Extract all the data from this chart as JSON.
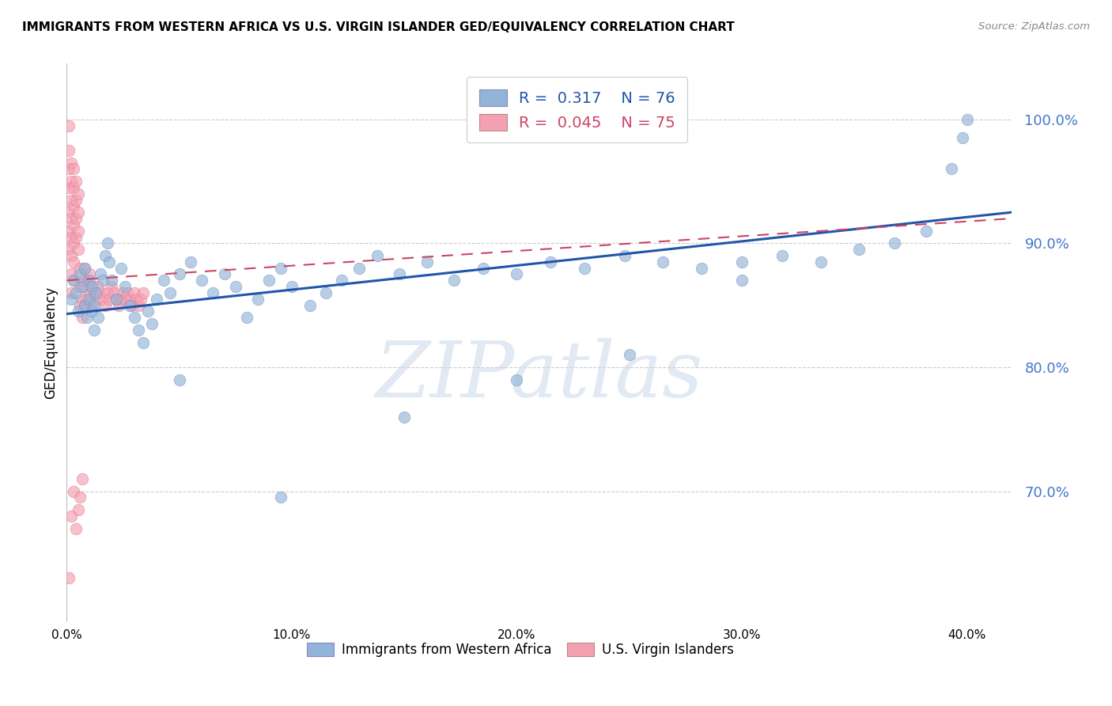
{
  "title": "IMMIGRANTS FROM WESTERN AFRICA VS U.S. VIRGIN ISLANDER GED/EQUIVALENCY CORRELATION CHART",
  "source": "Source: ZipAtlas.com",
  "ylabel": "GED/Equivalency",
  "xlim": [
    0.0,
    0.42
  ],
  "ylim": [
    0.595,
    1.045
  ],
  "blue_R": 0.317,
  "blue_N": 76,
  "pink_R": 0.045,
  "pink_N": 75,
  "blue_color": "#92B4D8",
  "pink_color": "#F4A0B0",
  "blue_scatter_edge": "#7090C0",
  "pink_scatter_edge": "#E07090",
  "blue_line_color": "#2255AA",
  "pink_line_color": "#CC4466",
  "blue_label": "Immigrants from Western Africa",
  "pink_label": "U.S. Virgin Islanders",
  "watermark": "ZIPatlas",
  "watermark_blue": "#C8D8EE",
  "watermark_pink": "#EEC8D0",
  "grid_color": "#CCCCCC",
  "blue_points_x": [
    0.002,
    0.003,
    0.004,
    0.005,
    0.006,
    0.007,
    0.008,
    0.008,
    0.009,
    0.01,
    0.01,
    0.011,
    0.011,
    0.012,
    0.012,
    0.013,
    0.014,
    0.015,
    0.016,
    0.017,
    0.018,
    0.019,
    0.02,
    0.022,
    0.024,
    0.026,
    0.028,
    0.03,
    0.032,
    0.034,
    0.036,
    0.038,
    0.04,
    0.043,
    0.046,
    0.05,
    0.055,
    0.06,
    0.065,
    0.07,
    0.075,
    0.08,
    0.085,
    0.09,
    0.095,
    0.1,
    0.108,
    0.115,
    0.122,
    0.13,
    0.138,
    0.148,
    0.16,
    0.172,
    0.185,
    0.2,
    0.215,
    0.23,
    0.248,
    0.265,
    0.282,
    0.3,
    0.318,
    0.335,
    0.352,
    0.368,
    0.382,
    0.393,
    0.398,
    0.4,
    0.05,
    0.095,
    0.15,
    0.2,
    0.25,
    0.3
  ],
  "blue_points_y": [
    0.855,
    0.87,
    0.86,
    0.845,
    0.875,
    0.865,
    0.85,
    0.88,
    0.84,
    0.87,
    0.855,
    0.865,
    0.845,
    0.83,
    0.85,
    0.86,
    0.84,
    0.875,
    0.87,
    0.89,
    0.9,
    0.885,
    0.87,
    0.855,
    0.88,
    0.865,
    0.85,
    0.84,
    0.83,
    0.82,
    0.845,
    0.835,
    0.855,
    0.87,
    0.86,
    0.875,
    0.885,
    0.87,
    0.86,
    0.875,
    0.865,
    0.84,
    0.855,
    0.87,
    0.88,
    0.865,
    0.85,
    0.86,
    0.87,
    0.88,
    0.89,
    0.875,
    0.885,
    0.87,
    0.88,
    0.875,
    0.885,
    0.88,
    0.89,
    0.885,
    0.88,
    0.885,
    0.89,
    0.885,
    0.895,
    0.9,
    0.91,
    0.96,
    0.985,
    1.0,
    0.79,
    0.695,
    0.76,
    0.79,
    0.81,
    0.87
  ],
  "pink_points_x": [
    0.001,
    0.001,
    0.001,
    0.001,
    0.001,
    0.001,
    0.001,
    0.002,
    0.002,
    0.002,
    0.002,
    0.002,
    0.002,
    0.002,
    0.002,
    0.003,
    0.003,
    0.003,
    0.003,
    0.003,
    0.003,
    0.003,
    0.004,
    0.004,
    0.004,
    0.004,
    0.005,
    0.005,
    0.005,
    0.005,
    0.006,
    0.006,
    0.006,
    0.007,
    0.007,
    0.007,
    0.008,
    0.008,
    0.008,
    0.009,
    0.009,
    0.01,
    0.01,
    0.011,
    0.011,
    0.012,
    0.013,
    0.014,
    0.015,
    0.016,
    0.017,
    0.018,
    0.019,
    0.02,
    0.021,
    0.022,
    0.023,
    0.024,
    0.025,
    0.026,
    0.027,
    0.028,
    0.029,
    0.03,
    0.031,
    0.032,
    0.033,
    0.034,
    0.001,
    0.002,
    0.003,
    0.004,
    0.005,
    0.006,
    0.007
  ],
  "pink_points_y": [
    0.995,
    0.975,
    0.96,
    0.945,
    0.925,
    0.91,
    0.895,
    0.965,
    0.95,
    0.935,
    0.92,
    0.905,
    0.89,
    0.875,
    0.86,
    0.96,
    0.945,
    0.93,
    0.915,
    0.9,
    0.885,
    0.87,
    0.95,
    0.935,
    0.92,
    0.905,
    0.94,
    0.925,
    0.91,
    0.895,
    0.88,
    0.865,
    0.85,
    0.87,
    0.855,
    0.84,
    0.88,
    0.865,
    0.85,
    0.87,
    0.855,
    0.875,
    0.86,
    0.865,
    0.85,
    0.86,
    0.855,
    0.865,
    0.86,
    0.855,
    0.85,
    0.86,
    0.855,
    0.865,
    0.86,
    0.855,
    0.85,
    0.855,
    0.86,
    0.855,
    0.86,
    0.855,
    0.85,
    0.86,
    0.855,
    0.85,
    0.855,
    0.86,
    0.63,
    0.68,
    0.7,
    0.67,
    0.685,
    0.695,
    0.71
  ]
}
